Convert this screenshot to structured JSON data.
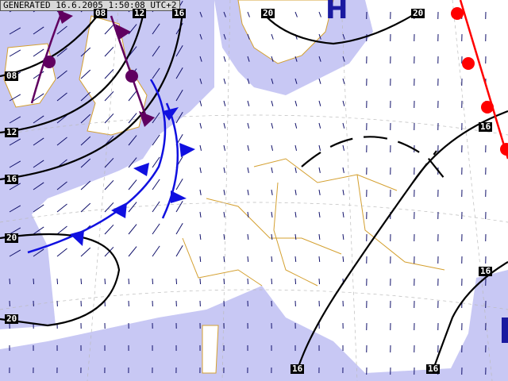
{
  "header": {
    "generated": "GENERATED 16.6.2005 1:50:08 UTC+2"
  },
  "colors": {
    "sea": "#c8c8f4",
    "land": "#ffffff",
    "border": "#d4a030",
    "isobar": "#000000",
    "cold_front": "#1010e0",
    "warm_front": "#ff0000",
    "occluded_front": "#600060",
    "wind_arrow": "#10106a",
    "pressure_center": "#1a1aa0"
  },
  "pressure_centers": [
    {
      "type": "H",
      "label": "H"
    }
  ],
  "isobar_labels": {
    "top": [
      "08",
      "12",
      "16",
      "20",
      "20"
    ],
    "left": [
      "08",
      "12",
      "16",
      "20",
      "20"
    ],
    "right": [
      "16",
      "16"
    ],
    "bottom": [
      "16",
      "16"
    ]
  },
  "fronts": [
    "cold",
    "warm",
    "occluded"
  ],
  "icons": [
    "wind-arrow-icon",
    "cold-front-triangle-icon",
    "warm-front-semicircle-icon",
    "occluded-front-icon"
  ]
}
